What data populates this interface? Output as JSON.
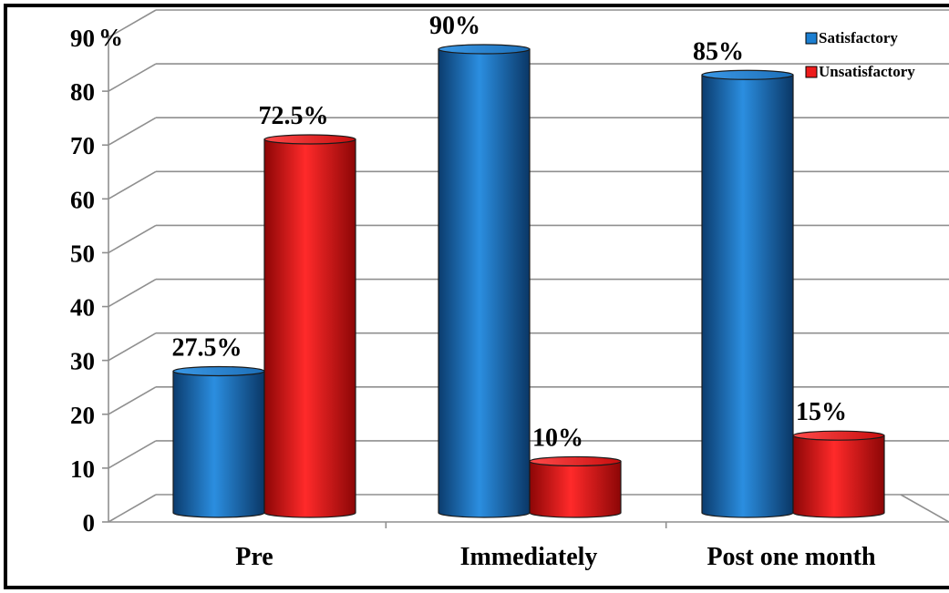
{
  "chart_data": {
    "type": "bar",
    "y_unit": "%",
    "ylim": [
      0,
      90
    ],
    "yticks": [
      0,
      10,
      20,
      30,
      40,
      50,
      60,
      70,
      80,
      90
    ],
    "categories": [
      "Pre",
      "Immediately",
      "Post one month"
    ],
    "series": [
      {
        "name": "Satisfactory",
        "color": "#1c7fd1",
        "values": [
          27.5,
          90,
          85
        ],
        "labels": [
          "27.5%",
          "90%",
          "85%"
        ]
      },
      {
        "name": "Unsatisfactory",
        "color": "#ee1c1c",
        "values": [
          72.5,
          10,
          15
        ],
        "labels": [
          "72.5%",
          "10%",
          "15%"
        ]
      }
    ],
    "grid": true,
    "legend_position": "top-right",
    "style": "3d-cylinder"
  }
}
